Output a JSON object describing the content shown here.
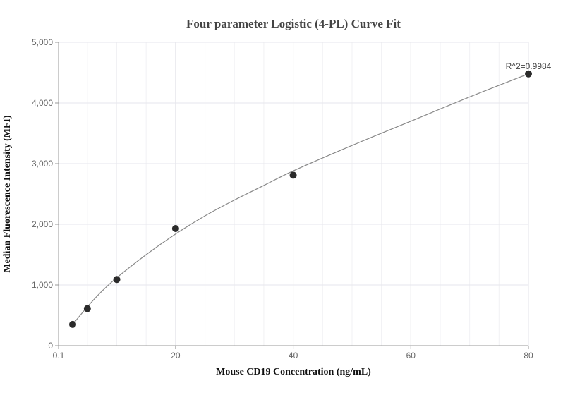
{
  "chart_data": {
    "type": "scatter",
    "title": "Four parameter Logistic (4-PL) Curve Fit",
    "xlabel": "Mouse CD19 Concentration (ng/mL)",
    "ylabel": "Median Fluorescence Intensity (MFI)",
    "xlim": [
      0.1,
      80
    ],
    "ylim": [
      0,
      5000
    ],
    "x_ticks": [
      "0.1",
      "20",
      "40",
      "60",
      "80"
    ],
    "y_ticks": [
      "0",
      "1,000",
      "2,000",
      "3,000",
      "4,000",
      "5,000"
    ],
    "grid": true,
    "points": [
      {
        "x": 2.5,
        "y": 350
      },
      {
        "x": 5,
        "y": 610
      },
      {
        "x": 10,
        "y": 1090
      },
      {
        "x": 20,
        "y": 1930
      },
      {
        "x": 40,
        "y": 2810
      },
      {
        "x": 80,
        "y": 4480
      }
    ],
    "fit_curve": [
      {
        "x": 2.5,
        "y": 350
      },
      {
        "x": 5,
        "y": 640
      },
      {
        "x": 7.5,
        "y": 900
      },
      {
        "x": 10,
        "y": 1120
      },
      {
        "x": 15,
        "y": 1500
      },
      {
        "x": 20,
        "y": 1840
      },
      {
        "x": 25,
        "y": 2140
      },
      {
        "x": 30,
        "y": 2400
      },
      {
        "x": 35,
        "y": 2640
      },
      {
        "x": 40,
        "y": 2880
      },
      {
        "x": 50,
        "y": 3300
      },
      {
        "x": 60,
        "y": 3700
      },
      {
        "x": 70,
        "y": 4100
      },
      {
        "x": 80,
        "y": 4480
      }
    ],
    "annotation": "R^2=0.9984"
  }
}
